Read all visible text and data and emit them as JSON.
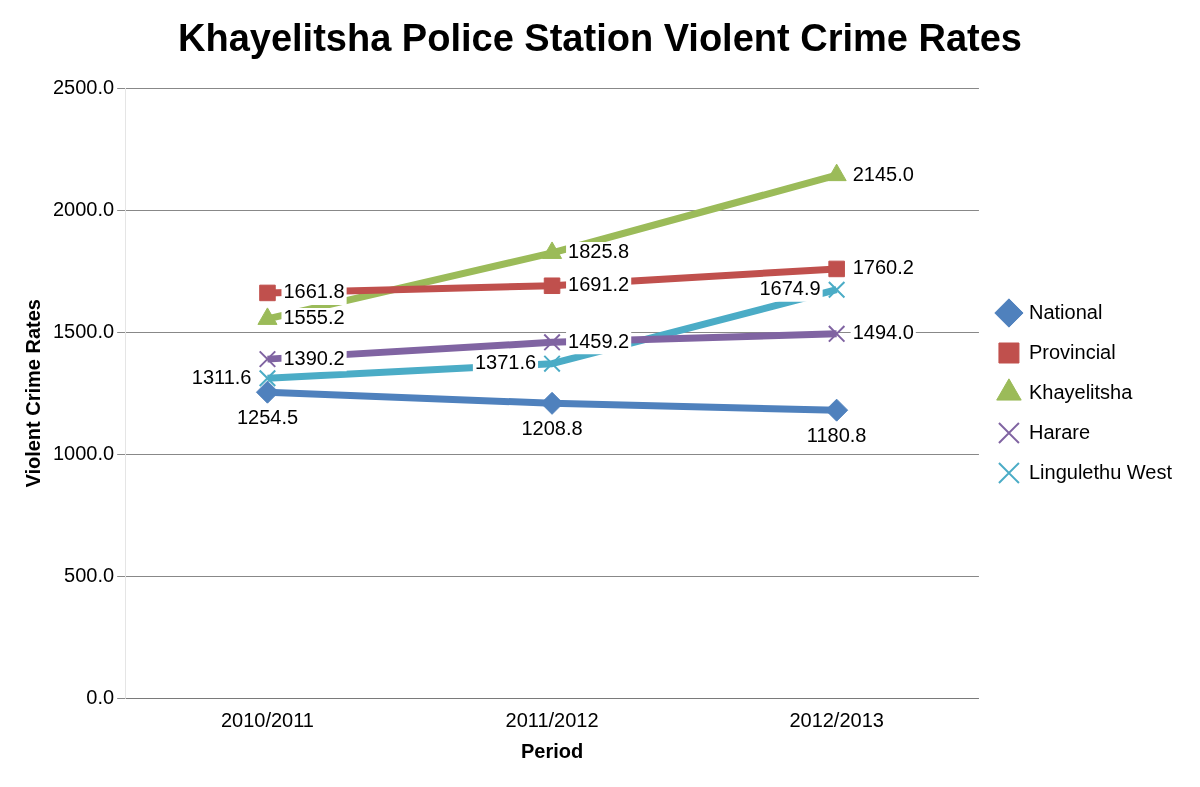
{
  "chart_data": {
    "type": "line",
    "title": "Khayelitsha Police Station Violent Crime Rates",
    "xlabel": "Period",
    "ylabel": "Violent Crime Rates",
    "categories": [
      "2010/2011",
      "2011/2012",
      "2012/2013"
    ],
    "series": [
      {
        "name": "National",
        "color": "#4f81bd",
        "marker": "diamond",
        "values": [
          1254.5,
          1208.8,
          1180.8
        ],
        "value_labels": [
          "1254.5",
          "1208.8",
          "1180.8"
        ]
      },
      {
        "name": "Provincial",
        "color": "#c0504d",
        "marker": "square",
        "values": [
          1661.8,
          1691.2,
          1760.2
        ],
        "value_labels": [
          "1661.8",
          "1691.2",
          "1760.2"
        ]
      },
      {
        "name": "Khayelitsha",
        "color": "#9bbb59",
        "marker": "triangle",
        "values": [
          1555.2,
          1825.8,
          2145.0
        ],
        "value_labels": [
          "1555.2",
          "1825.8",
          "2145.0"
        ]
      },
      {
        "name": "Harare",
        "color": "#8064a2",
        "marker": "cross",
        "values": [
          1390.2,
          1459.2,
          1494.0
        ],
        "value_labels": [
          "1390.2",
          "1459.2",
          "1494.0"
        ]
      },
      {
        "name": "Lingulethu West",
        "color": "#4bacc6",
        "marker": "cross",
        "values": [
          1311.6,
          1371.6,
          1674.9
        ],
        "value_labels": [
          "1311.6",
          "1371.6",
          "1674.9"
        ]
      }
    ],
    "ylim": [
      0,
      2500
    ],
    "yticks": [
      {
        "value": 0,
        "label": "0.0"
      },
      {
        "value": 500,
        "label": "500.0"
      },
      {
        "value": 1000,
        "label": "1000.0"
      },
      {
        "value": 1500,
        "label": "1500.0"
      },
      {
        "value": 2000,
        "label": "2000.0"
      },
      {
        "value": 2500,
        "label": "2500.0"
      }
    ],
    "grid": "y",
    "legend": "right",
    "line_style": "solid"
  }
}
